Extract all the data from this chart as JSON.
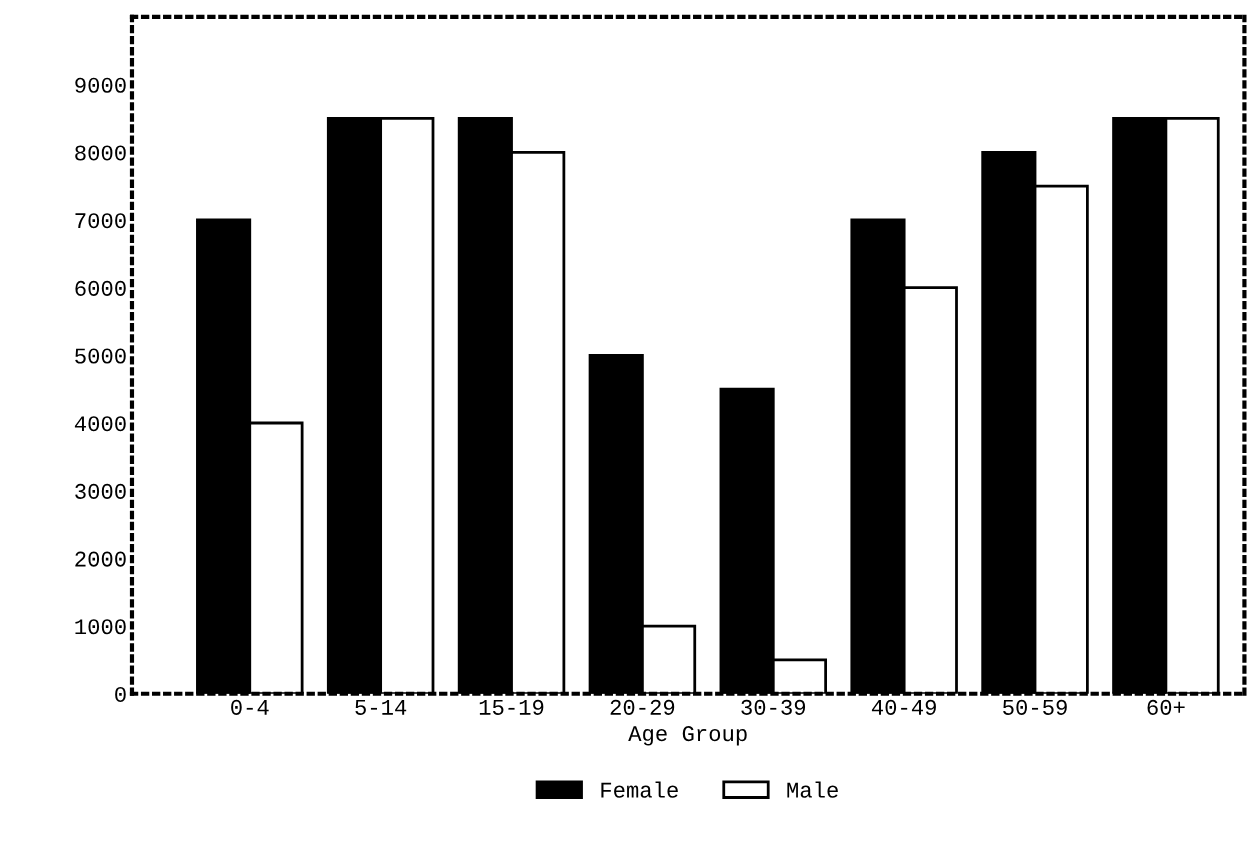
{
  "chart_data": {
    "type": "bar",
    "xlabel": "Age Group",
    "categories": [
      "0-4",
      "5-14",
      "15-19",
      "20-29",
      "30-39",
      "40-49",
      "50-59",
      "60+"
    ],
    "series": [
      {
        "name": "Female",
        "color": "#000000",
        "values": [
          7000,
          8500,
          8500,
          5000,
          4500,
          7000,
          8000,
          8500
        ]
      },
      {
        "name": "Male",
        "color": "#ffffff",
        "values": [
          4000,
          8500,
          8000,
          1000,
          500,
          6000,
          7500,
          8500
        ]
      }
    ],
    "ylim": [
      0,
      10000
    ],
    "yticks": [
      0,
      1000,
      2000,
      3000,
      4000,
      5000,
      6000,
      7000,
      8000,
      9000
    ],
    "grid": false,
    "legend": "bottom"
  }
}
